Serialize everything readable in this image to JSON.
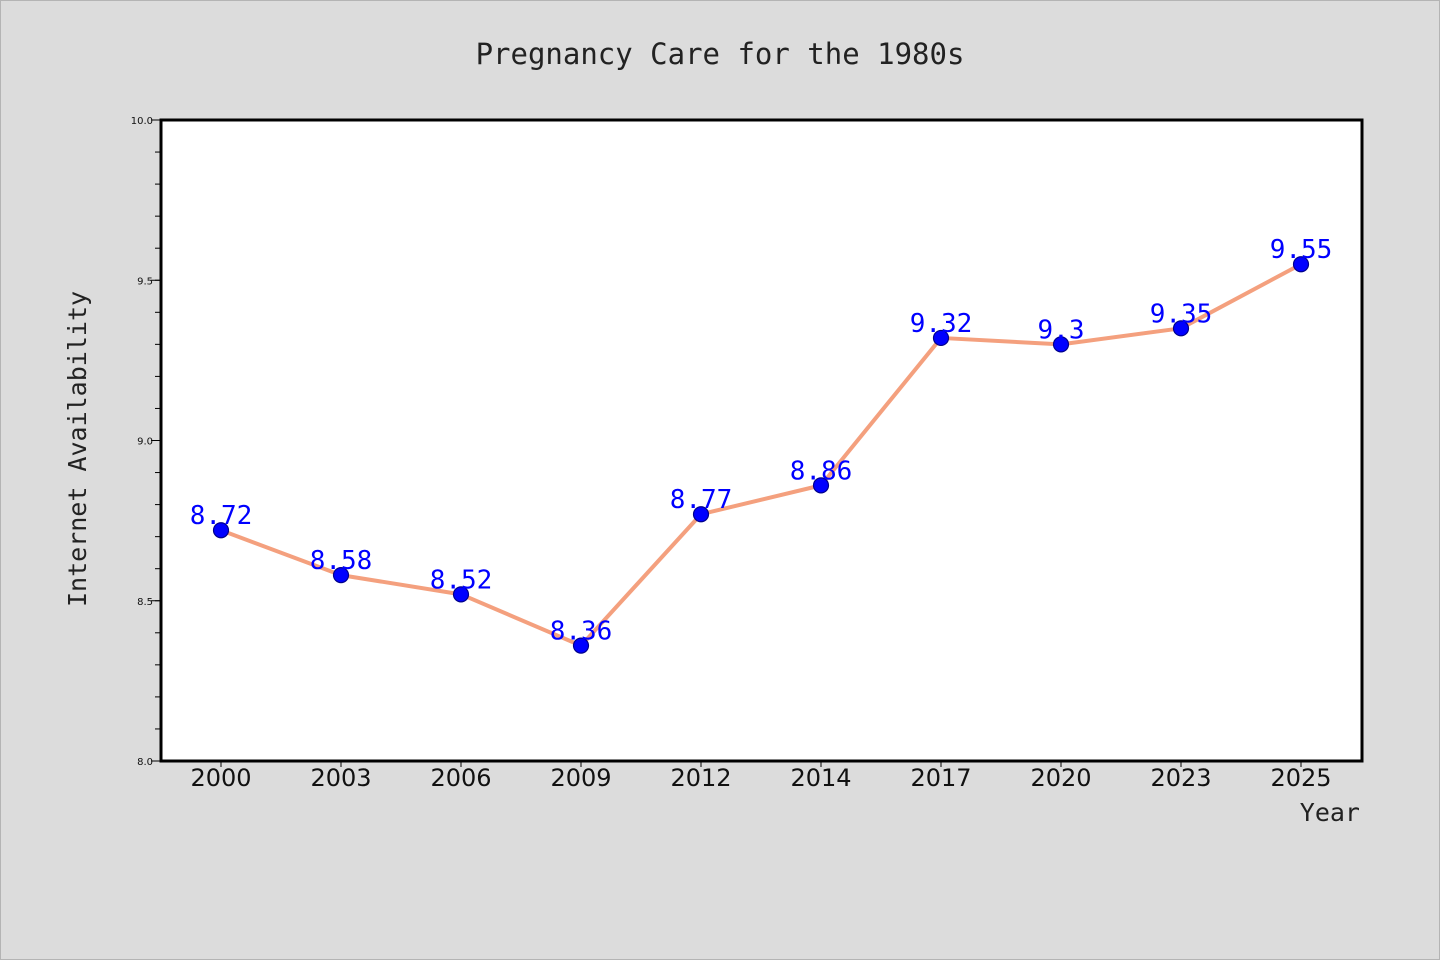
{
  "colors": {
    "background": "#dcdcdc",
    "plot_background": "#ffffff",
    "line": "#f4a07e",
    "marker": "#0000ff",
    "data_label": "#0000ff",
    "text": "#222222"
  },
  "chart_data": {
    "type": "line",
    "title": "Pregnancy Care for the 1980s",
    "xlabel": "Year",
    "ylabel": "Internet Availability",
    "categories": [
      "2000",
      "2003",
      "2006",
      "2009",
      "2012",
      "2014",
      "2017",
      "2020",
      "2023",
      "2025"
    ],
    "series": [
      {
        "values": [
          8.72,
          8.58,
          8.52,
          8.36,
          8.77,
          8.86,
          9.32,
          9.3,
          9.35,
          9.55
        ],
        "labels": [
          "8.72",
          "8.58",
          "8.52",
          "8.36",
          "8.77",
          "8.86",
          "9.32",
          "9.3",
          "9.35",
          "9.55"
        ]
      }
    ],
    "ylim": [
      8.0,
      10.0
    ],
    "yticks": [
      "8.0",
      "8.5",
      "9.0",
      "9.5",
      "10.0"
    ],
    "ytick_values": [
      8.0,
      8.5,
      9.0,
      9.5,
      10.0
    ],
    "minor_ytick_step": 0.1,
    "grid": false,
    "legend": "none"
  }
}
